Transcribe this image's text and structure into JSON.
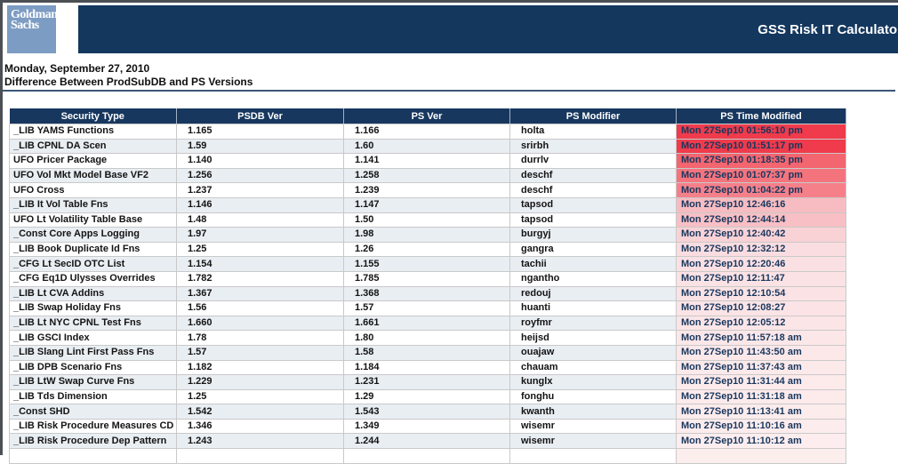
{
  "header": {
    "logo_line1": "Goldman",
    "logo_line2": "Sachs",
    "app_title": "GSS Risk IT Calculato",
    "banner_color": "#14375e",
    "logo_color": "#7d9cc3"
  },
  "page": {
    "date": "Monday, September 27, 2010",
    "subtitle": "Difference Between ProdSubDB and PS Versions"
  },
  "table": {
    "columns": [
      "Security Type",
      "PSDB Ver",
      "PS Ver",
      "PS Modifier",
      "PS Time Modified"
    ],
    "header_color": "#17375e",
    "rows": [
      {
        "security_type": "_LIB YAMS Functions",
        "psdb_ver": "1.165",
        "ps_ver": "1.166",
        "ps_modifier": "holta",
        "ps_time_modified": "Mon 27Sep10 01:56:10 pm",
        "heat_color": "#ef3b4c"
      },
      {
        "security_type": "_LIB CPNL DA Scen",
        "psdb_ver": "1.59",
        "ps_ver": "1.60",
        "ps_modifier": "srirbh",
        "ps_time_modified": "Mon 27Sep10 01:51:17 pm",
        "heat_color": "#ef3b4c"
      },
      {
        "security_type": "UFO Pricer Package",
        "psdb_ver": "1.140",
        "ps_ver": "1.141",
        "ps_modifier": "durrlv",
        "ps_time_modified": "Mon 27Sep10 01:18:35 pm",
        "heat_color": "#f3656f"
      },
      {
        "security_type": "UFO Vol Mkt Model Base VF2",
        "psdb_ver": "1.256",
        "ps_ver": "1.258",
        "ps_modifier": "deschf",
        "ps_time_modified": "Mon 27Sep10 01:07:37 pm",
        "heat_color": "#f4747d"
      },
      {
        "security_type": "UFO Cross",
        "psdb_ver": "1.237",
        "ps_ver": "1.239",
        "ps_modifier": "deschf",
        "ps_time_modified": "Mon 27Sep10 01:04:22 pm",
        "heat_color": "#f5808a"
      },
      {
        "security_type": "_LIB It Vol Table Fns",
        "psdb_ver": "1.146",
        "ps_ver": "1.147",
        "ps_modifier": "tapsod",
        "ps_time_modified": "Mon 27Sep10 12:46:16",
        "heat_color": "#f7bcc1"
      },
      {
        "security_type": "UFO Lt Volatility Table Base",
        "psdb_ver": "1.48",
        "ps_ver": "1.50",
        "ps_modifier": "tapsod",
        "ps_time_modified": "Mon 27Sep10 12:44:14",
        "heat_color": "#f8bfc4"
      },
      {
        "security_type": "_Const Core Apps Logging",
        "psdb_ver": "1.97",
        "ps_ver": "1.98",
        "ps_modifier": "burgyj",
        "ps_time_modified": "Mon 27Sep10 12:40:42",
        "heat_color": "#f9d2d6"
      },
      {
        "security_type": "_LIB Book Duplicate Id Fns",
        "psdb_ver": "1.25",
        "ps_ver": "1.26",
        "ps_modifier": "gangra",
        "ps_time_modified": "Mon 27Sep10 12:32:12",
        "heat_color": "#fadde0"
      },
      {
        "security_type": "_CFG Lt SecID OTC List",
        "psdb_ver": "1.154",
        "ps_ver": "1.155",
        "ps_modifier": "tachii",
        "ps_time_modified": "Mon 27Sep10 12:20:46",
        "heat_color": "#fbe0e3"
      },
      {
        "security_type": "_CFG Eq1D Ulysses Overrides",
        "psdb_ver": "1.782",
        "ps_ver": "1.785",
        "ps_modifier": "ngantho",
        "ps_time_modified": "Mon 27Sep10 12:11:47",
        "heat_color": "#fbe2e4"
      },
      {
        "security_type": "_LIB Lt CVA Addins",
        "psdb_ver": "1.367",
        "ps_ver": "1.368",
        "ps_modifier": "redouj",
        "ps_time_modified": "Mon 27Sep10 12:10:54",
        "heat_color": "#fbe3e5"
      },
      {
        "security_type": "_LIB Swap Holiday Fns",
        "psdb_ver": "1.56",
        "ps_ver": "1.57",
        "ps_modifier": "huanti",
        "ps_time_modified": "Mon 27Sep10 12:08:27",
        "heat_color": "#fce4e6"
      },
      {
        "security_type": "_LIB Lt NYC CPNL Test Fns",
        "psdb_ver": "1.660",
        "ps_ver": "1.661",
        "ps_modifier": "royfmr",
        "ps_time_modified": "Mon 27Sep10 12:05:12",
        "heat_color": "#fce5e7"
      },
      {
        "security_type": "_LIB GSCI Index",
        "psdb_ver": "1.78",
        "ps_ver": "1.80",
        "ps_modifier": "heijsd",
        "ps_time_modified": "Mon 27Sep10 11:57:18 am",
        "heat_color": "#fce7e8"
      },
      {
        "security_type": "_LIB Slang Lint First Pass Fns",
        "psdb_ver": "1.57",
        "ps_ver": "1.58",
        "ps_modifier": "ouajaw",
        "ps_time_modified": "Mon 27Sep10 11:43:50 am",
        "heat_color": "#fce8e9"
      },
      {
        "security_type": "_LIB DPB Scenario Fns",
        "psdb_ver": "1.182",
        "ps_ver": "1.184",
        "ps_modifier": "chauam",
        "ps_time_modified": "Mon 27Sep10 11:37:43 am",
        "heat_color": "#fce9ea"
      },
      {
        "security_type": "_LIB LtW Swap Curve Fns",
        "psdb_ver": "1.229",
        "ps_ver": "1.231",
        "ps_modifier": "kunglx",
        "ps_time_modified": "Mon 27Sep10 11:31:44 am",
        "heat_color": "#fdeaeb"
      },
      {
        "security_type": "_LIB Tds Dimension",
        "psdb_ver": "1.25",
        "ps_ver": "1.29",
        "ps_modifier": "fonghu",
        "ps_time_modified": "Mon 27Sep10 11:31:18 am",
        "heat_color": "#fdebec"
      },
      {
        "security_type": "_Const SHD",
        "psdb_ver": "1.542",
        "ps_ver": "1.543",
        "ps_modifier": "kwanth",
        "ps_time_modified": "Mon 27Sep10 11:13:41 am",
        "heat_color": "#fdecec"
      },
      {
        "security_type": "_LIB Risk Procedure Measures CD",
        "psdb_ver": "1.346",
        "ps_ver": "1.349",
        "ps_modifier": "wisemr",
        "ps_time_modified": "Mon 27Sep10 11:10:16 am",
        "heat_color": "#fdeced"
      },
      {
        "security_type": "_LIB Risk Procedure Dep Pattern",
        "psdb_ver": "1.243",
        "ps_ver": "1.244",
        "ps_modifier": "wisemr",
        "ps_time_modified": "Mon 27Sep10 11:10:12 am",
        "heat_color": "#fdedee"
      }
    ],
    "partial_row": {
      "security_type": "",
      "psdb_ver": "",
      "ps_ver": "",
      "ps_modifier": "",
      "ps_time_modified": "",
      "heat_color": "#fdeeee"
    }
  }
}
